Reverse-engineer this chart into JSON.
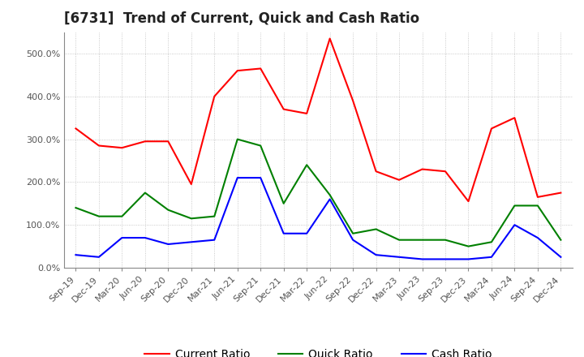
{
  "title": "[6731]  Trend of Current, Quick and Cash Ratio",
  "labels": [
    "Sep-19",
    "Dec-19",
    "Mar-20",
    "Jun-20",
    "Sep-20",
    "Dec-20",
    "Mar-21",
    "Jun-21",
    "Sep-21",
    "Dec-21",
    "Mar-22",
    "Jun-22",
    "Sep-22",
    "Dec-22",
    "Mar-23",
    "Jun-23",
    "Sep-23",
    "Dec-23",
    "Mar-24",
    "Jun-24",
    "Sep-24",
    "Dec-24"
  ],
  "current_ratio": [
    325,
    285,
    280,
    295,
    295,
    195,
    400,
    460,
    465,
    370,
    360,
    535,
    390,
    225,
    205,
    230,
    225,
    155,
    325,
    350,
    165,
    175
  ],
  "quick_ratio": [
    140,
    120,
    120,
    175,
    135,
    115,
    120,
    300,
    285,
    150,
    240,
    170,
    80,
    90,
    65,
    65,
    65,
    50,
    60,
    145,
    145,
    65
  ],
  "cash_ratio": [
    30,
    25,
    70,
    70,
    55,
    60,
    65,
    210,
    210,
    80,
    80,
    160,
    65,
    30,
    25,
    20,
    20,
    20,
    25,
    100,
    70,
    25
  ],
  "current_color": "#FF0000",
  "quick_color": "#008000",
  "cash_color": "#0000FF",
  "ylim": [
    0,
    550
  ],
  "yticks": [
    0,
    100,
    200,
    300,
    400,
    500
  ],
  "ytick_labels": [
    "0.0%",
    "100.0%",
    "200.0%",
    "300.0%",
    "400.0%",
    "500.0%"
  ],
  "background_color": "#FFFFFF",
  "plot_bg_color": "#FFFFFF",
  "grid_color": "#BBBBBB",
  "title_fontsize": 12,
  "tick_fontsize": 8,
  "legend_fontsize": 10
}
